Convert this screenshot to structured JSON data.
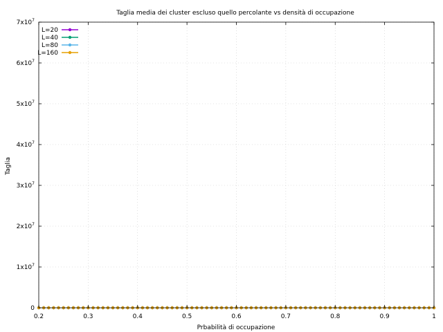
{
  "chart_data": {
    "type": "scatter",
    "title": "Taglia media dei cluster escluso quello percolante vs densità di occupazione",
    "xlabel": "Prbabilità di occupazione",
    "ylabel": "Taglia",
    "xlim": [
      0.2,
      1.0
    ],
    "ylim": [
      0,
      70000000
    ],
    "xticks": [
      {
        "value": 0.2,
        "label": "0.2"
      },
      {
        "value": 0.3,
        "label": "0.3"
      },
      {
        "value": 0.4,
        "label": "0.4"
      },
      {
        "value": 0.5,
        "label": "0.5"
      },
      {
        "value": 0.6,
        "label": "0.6"
      },
      {
        "value": 0.7,
        "label": "0.7"
      },
      {
        "value": 0.8,
        "label": "0.8"
      },
      {
        "value": 0.9,
        "label": "0.9"
      },
      {
        "value": 1.0,
        "label": "1"
      }
    ],
    "yticks": [
      {
        "value": 0,
        "label": "0",
        "mantissa": "0",
        "exponent": ""
      },
      {
        "value": 10000000,
        "label": "1x10^7",
        "mantissa": "1x10",
        "exponent": "7"
      },
      {
        "value": 20000000,
        "label": "2x10^7",
        "mantissa": "2x10",
        "exponent": "7"
      },
      {
        "value": 30000000,
        "label": "3x10^7",
        "mantissa": "3x10",
        "exponent": "7"
      },
      {
        "value": 40000000,
        "label": "4x10^7",
        "mantissa": "4x10",
        "exponent": "7"
      },
      {
        "value": 50000000,
        "label": "5x10^7",
        "mantissa": "5x10",
        "exponent": "7"
      },
      {
        "value": 60000000,
        "label": "6x10^7",
        "mantissa": "6x10",
        "exponent": "7"
      },
      {
        "value": 70000000,
        "label": "7x10^7",
        "mantissa": "7x10",
        "exponent": "7"
      }
    ],
    "grid": true,
    "legend_position": "top-left",
    "x": [
      0.2,
      0.21,
      0.22,
      0.23,
      0.24,
      0.25,
      0.26,
      0.27,
      0.28,
      0.29,
      0.3,
      0.31,
      0.32,
      0.33,
      0.34,
      0.35,
      0.36,
      0.37,
      0.38,
      0.39,
      0.4,
      0.41,
      0.42,
      0.43,
      0.44,
      0.45,
      0.46,
      0.47,
      0.48,
      0.49,
      0.5,
      0.51,
      0.52,
      0.53,
      0.54,
      0.55,
      0.56,
      0.57,
      0.58,
      0.59,
      0.6,
      0.61,
      0.62,
      0.63,
      0.64,
      0.65,
      0.66,
      0.67,
      0.68,
      0.69,
      0.7,
      0.71,
      0.72,
      0.73,
      0.74,
      0.75,
      0.76,
      0.77,
      0.78,
      0.79,
      0.8,
      0.81,
      0.82,
      0.83,
      0.84,
      0.85,
      0.86,
      0.87,
      0.88,
      0.89,
      0.9,
      0.91,
      0.92,
      0.93,
      0.94,
      0.95,
      0.96,
      0.97,
      0.98,
      0.99,
      1.0
    ],
    "series": [
      {
        "name": "L=20",
        "color": "#9400d3",
        "values": [
          0,
          0,
          0,
          0,
          0,
          0,
          0,
          0,
          0,
          0,
          0,
          0,
          0,
          0,
          0,
          0,
          0,
          0,
          0,
          0,
          0,
          0,
          0,
          0,
          0,
          0,
          0,
          0,
          0,
          0,
          0,
          0,
          0,
          0,
          0,
          0,
          0,
          0,
          0,
          0,
          0,
          0,
          0,
          0,
          0,
          0,
          0,
          0,
          0,
          0,
          0,
          0,
          0,
          0,
          0,
          0,
          0,
          0,
          0,
          0,
          0,
          0,
          0,
          0,
          0,
          0,
          0,
          0,
          0,
          0,
          0,
          0,
          0,
          0,
          0,
          0,
          0,
          0,
          0,
          0,
          0
        ]
      },
      {
        "name": "L=40",
        "color": "#009e73",
        "values": [
          0,
          0,
          0,
          0,
          0,
          0,
          0,
          0,
          0,
          0,
          0,
          0,
          0,
          0,
          0,
          0,
          0,
          0,
          0,
          0,
          0,
          0,
          0,
          0,
          0,
          0,
          0,
          0,
          0,
          0,
          0,
          0,
          0,
          0,
          0,
          0,
          0,
          0,
          0,
          0,
          0,
          0,
          0,
          0,
          0,
          0,
          0,
          0,
          0,
          0,
          0,
          0,
          0,
          0,
          0,
          0,
          0,
          0,
          0,
          0,
          0,
          0,
          0,
          0,
          0,
          0,
          0,
          0,
          0,
          0,
          0,
          0,
          0,
          0,
          0,
          0,
          0,
          0,
          0,
          0,
          0
        ]
      },
      {
        "name": "L=80",
        "color": "#56b4e9",
        "values": [
          0,
          0,
          0,
          0,
          0,
          0,
          0,
          0,
          0,
          0,
          0,
          0,
          0,
          0,
          0,
          0,
          0,
          0,
          0,
          0,
          0,
          0,
          0,
          0,
          0,
          0,
          0,
          0,
          0,
          0,
          0,
          0,
          0,
          0,
          0,
          0,
          0,
          0,
          0,
          0,
          0,
          0,
          0,
          0,
          0,
          0,
          0,
          0,
          0,
          0,
          0,
          0,
          0,
          0,
          0,
          0,
          0,
          0,
          0,
          0,
          0,
          0,
          0,
          0,
          0,
          0,
          0,
          0,
          0,
          0,
          0,
          0,
          0,
          0,
          0,
          0,
          0,
          0,
          0,
          0,
          0
        ]
      },
      {
        "name": "L=160",
        "color": "#e69f00",
        "values": [
          0,
          0,
          0,
          0,
          0,
          0,
          0,
          0,
          0,
          0,
          0,
          0,
          0,
          0,
          0,
          0,
          0,
          0,
          0,
          0,
          0,
          0,
          0,
          0,
          0,
          0,
          0,
          0,
          0,
          0,
          0,
          0,
          0,
          0,
          0,
          0,
          0,
          0,
          0,
          0,
          0,
          0,
          0,
          0,
          0,
          0,
          0,
          0,
          0,
          0,
          0,
          0,
          0,
          0,
          0,
          0,
          0,
          0,
          0,
          0,
          0,
          0,
          0,
          0,
          0,
          0,
          0,
          0,
          0,
          0,
          0,
          0,
          0,
          0,
          0,
          0,
          0,
          0,
          0,
          0,
          0
        ]
      }
    ]
  }
}
